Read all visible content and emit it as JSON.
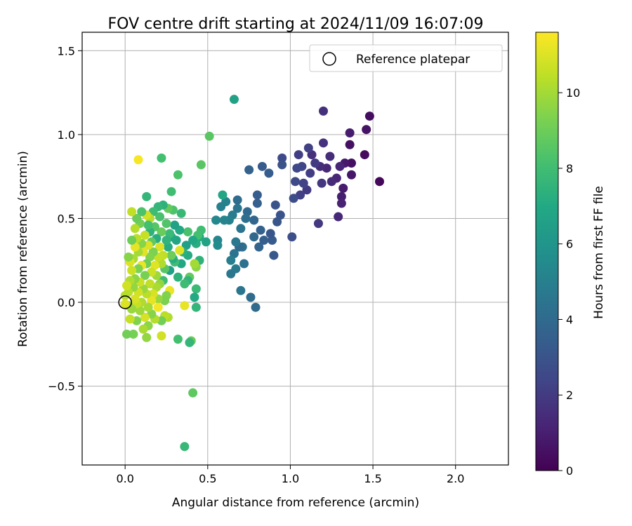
{
  "chart_data": {
    "type": "scatter",
    "title": "FOV centre drift starting at 2024/11/09 16:07:09",
    "xlabel": "Angular distance from reference (arcmin)",
    "ylabel": "Rotation from reference (arcmin)",
    "xlim": [
      -0.26,
      2.32
    ],
    "ylim": [
      -0.97,
      1.61
    ],
    "xticks": [
      0.0,
      0.5,
      1.0,
      1.5,
      2.0
    ],
    "xtick_labels": [
      "0.0",
      "0.5",
      "1.0",
      "1.5",
      "2.0"
    ],
    "yticks": [
      -0.5,
      0.0,
      0.5,
      1.0,
      1.5
    ],
    "ytick_labels": [
      "−0.5",
      "0.0",
      "0.5",
      "1.0",
      "1.5"
    ],
    "grid": true,
    "legend": {
      "position": "top-right",
      "entries": [
        "Reference platepar"
      ]
    },
    "reference_point": {
      "x": 0.0,
      "y": 0.0,
      "label": "Reference platepar"
    },
    "colorbar": {
      "label": "Hours from first FF file",
      "colormap": "viridis",
      "range": [
        0,
        11.6
      ],
      "ticks": [
        0,
        2,
        4,
        6,
        8,
        10
      ],
      "tick_labels": [
        "0",
        "2",
        "4",
        "6",
        "8",
        "10"
      ]
    },
    "points": [
      {
        "x": 1.54,
        "y": 0.72,
        "c": 0.2
      },
      {
        "x": 1.48,
        "y": 1.11,
        "c": 0.4
      },
      {
        "x": 1.46,
        "y": 1.03,
        "c": 0.6
      },
      {
        "x": 1.45,
        "y": 0.88,
        "c": 0.3
      },
      {
        "x": 1.37,
        "y": 0.83,
        "c": 0.5
      },
      {
        "x": 1.37,
        "y": 0.76,
        "c": 0.7
      },
      {
        "x": 1.36,
        "y": 1.01,
        "c": 0.9
      },
      {
        "x": 1.36,
        "y": 0.94,
        "c": 0.5
      },
      {
        "x": 1.33,
        "y": 0.83,
        "c": 0.8
      },
      {
        "x": 1.32,
        "y": 0.68,
        "c": 0.9
      },
      {
        "x": 1.31,
        "y": 0.63,
        "c": 1.0
      },
      {
        "x": 1.31,
        "y": 0.59,
        "c": 1.1
      },
      {
        "x": 1.3,
        "y": 0.81,
        "c": 1.2
      },
      {
        "x": 1.29,
        "y": 0.51,
        "c": 1.3
      },
      {
        "x": 1.28,
        "y": 0.74,
        "c": 1.2
      },
      {
        "x": 1.25,
        "y": 0.72,
        "c": 1.4
      },
      {
        "x": 1.24,
        "y": 0.87,
        "c": 1.5
      },
      {
        "x": 1.22,
        "y": 0.8,
        "c": 1.3
      },
      {
        "x": 1.2,
        "y": 1.14,
        "c": 1.6
      },
      {
        "x": 1.2,
        "y": 0.95,
        "c": 1.7
      },
      {
        "x": 1.19,
        "y": 0.71,
        "c": 1.8
      },
      {
        "x": 1.18,
        "y": 0.81,
        "c": 1.5
      },
      {
        "x": 1.17,
        "y": 0.47,
        "c": 1.9
      },
      {
        "x": 1.15,
        "y": 0.83,
        "c": 2.0
      },
      {
        "x": 1.13,
        "y": 0.88,
        "c": 1.6
      },
      {
        "x": 1.12,
        "y": 0.77,
        "c": 2.1
      },
      {
        "x": 1.11,
        "y": 0.92,
        "c": 2.2
      },
      {
        "x": 1.1,
        "y": 0.67,
        "c": 2.0
      },
      {
        "x": 1.08,
        "y": 0.71,
        "c": 2.3
      },
      {
        "x": 1.07,
        "y": 0.81,
        "c": 2.4
      },
      {
        "x": 1.06,
        "y": 0.64,
        "c": 2.2
      },
      {
        "x": 1.05,
        "y": 0.88,
        "c": 2.1
      },
      {
        "x": 1.04,
        "y": 0.8,
        "c": 2.5
      },
      {
        "x": 1.03,
        "y": 0.72,
        "c": 2.6
      },
      {
        "x": 1.02,
        "y": 0.62,
        "c": 2.7
      },
      {
        "x": 1.01,
        "y": 0.39,
        "c": 2.8
      },
      {
        "x": 0.95,
        "y": 0.86,
        "c": 2.6
      },
      {
        "x": 0.95,
        "y": 0.82,
        "c": 2.9
      },
      {
        "x": 0.94,
        "y": 0.52,
        "c": 3.0
      },
      {
        "x": 0.92,
        "y": 0.48,
        "c": 3.1
      },
      {
        "x": 0.91,
        "y": 0.58,
        "c": 3.0
      },
      {
        "x": 0.9,
        "y": 0.28,
        "c": 3.2
      },
      {
        "x": 0.89,
        "y": 0.37,
        "c": 3.3
      },
      {
        "x": 0.88,
        "y": 0.41,
        "c": 3.1
      },
      {
        "x": 0.87,
        "y": 0.77,
        "c": 3.4
      },
      {
        "x": 0.84,
        "y": 0.37,
        "c": 3.5
      },
      {
        "x": 0.83,
        "y": 0.81,
        "c": 3.3
      },
      {
        "x": 0.82,
        "y": 0.43,
        "c": 3.6
      },
      {
        "x": 0.81,
        "y": 0.33,
        "c": 3.7
      },
      {
        "x": 0.8,
        "y": 0.59,
        "c": 3.5
      },
      {
        "x": 0.8,
        "y": 0.64,
        "c": 3.4
      },
      {
        "x": 0.78,
        "y": 0.49,
        "c": 3.8
      },
      {
        "x": 0.78,
        "y": 0.39,
        "c": 3.9
      },
      {
        "x": 0.79,
        "y": -0.03,
        "c": 4.0
      },
      {
        "x": 0.76,
        "y": 0.03,
        "c": 4.1
      },
      {
        "x": 0.75,
        "y": 0.79,
        "c": 3.6
      },
      {
        "x": 0.74,
        "y": 0.54,
        "c": 3.9
      },
      {
        "x": 0.73,
        "y": 0.5,
        "c": 4.2
      },
      {
        "x": 0.72,
        "y": 0.23,
        "c": 4.3
      },
      {
        "x": 0.71,
        "y": 0.33,
        "c": 4.2
      },
      {
        "x": 0.7,
        "y": 0.44,
        "c": 4.4
      },
      {
        "x": 0.7,
        "y": 0.07,
        "c": 4.5
      },
      {
        "x": 0.69,
        "y": 0.33,
        "c": 4.0
      },
      {
        "x": 0.68,
        "y": 0.56,
        "c": 4.5
      },
      {
        "x": 0.68,
        "y": 0.61,
        "c": 4.1
      },
      {
        "x": 0.67,
        "y": 0.36,
        "c": 4.6
      },
      {
        "x": 0.67,
        "y": 0.2,
        "c": 4.7
      },
      {
        "x": 0.66,
        "y": 0.29,
        "c": 4.4
      },
      {
        "x": 0.66,
        "y": 1.21,
        "c": 6.6
      },
      {
        "x": 0.65,
        "y": 0.52,
        "c": 4.8
      },
      {
        "x": 0.64,
        "y": 0.25,
        "c": 4.9
      },
      {
        "x": 0.64,
        "y": 0.17,
        "c": 4.6
      },
      {
        "x": 0.63,
        "y": 0.49,
        "c": 5.0
      },
      {
        "x": 0.61,
        "y": 0.6,
        "c": 5.1
      },
      {
        "x": 0.6,
        "y": 0.49,
        "c": 5.2
      },
      {
        "x": 0.59,
        "y": 0.64,
        "c": 6.8
      },
      {
        "x": 0.58,
        "y": 0.57,
        "c": 5.0
      },
      {
        "x": 0.56,
        "y": 0.37,
        "c": 5.3
      },
      {
        "x": 0.56,
        "y": 0.34,
        "c": 5.5
      },
      {
        "x": 0.55,
        "y": 0.49,
        "c": 5.4
      },
      {
        "x": 0.51,
        "y": 0.99,
        "c": 8.6
      },
      {
        "x": 0.49,
        "y": 0.36,
        "c": 6.7
      },
      {
        "x": 0.46,
        "y": 0.43,
        "c": 8.0
      },
      {
        "x": 0.46,
        "y": 0.82,
        "c": 8.6
      },
      {
        "x": 0.45,
        "y": 0.39,
        "c": 7.0
      },
      {
        "x": 0.45,
        "y": 0.25,
        "c": 7.4
      },
      {
        "x": 0.44,
        "y": 0.4,
        "c": 8.1
      },
      {
        "x": 0.43,
        "y": 0.35,
        "c": 7.2
      },
      {
        "x": 0.43,
        "y": 0.21,
        "c": 9.6
      },
      {
        "x": 0.43,
        "y": 0.08,
        "c": 7.8
      },
      {
        "x": 0.43,
        "y": -0.03,
        "c": 7.6
      },
      {
        "x": 0.42,
        "y": 0.03,
        "c": 7.0
      },
      {
        "x": 0.42,
        "y": 0.23,
        "c": 10.0
      },
      {
        "x": 0.41,
        "y": 0.37,
        "c": 6.9
      },
      {
        "x": 0.41,
        "y": -0.54,
        "c": 8.7
      },
      {
        "x": 0.4,
        "y": -0.23,
        "c": 8.9
      },
      {
        "x": 0.39,
        "y": 0.15,
        "c": 8.8
      },
      {
        "x": 0.39,
        "y": -0.24,
        "c": 7.6
      },
      {
        "x": 0.38,
        "y": 0.42,
        "c": 8.2
      },
      {
        "x": 0.38,
        "y": 0.28,
        "c": 7.1
      },
      {
        "x": 0.38,
        "y": 0.13,
        "c": 7.5
      },
      {
        "x": 0.37,
        "y": 0.34,
        "c": 6.5
      },
      {
        "x": 0.36,
        "y": 0.11,
        "c": 7.9
      },
      {
        "x": 0.36,
        "y": -0.02,
        "c": 11.2
      },
      {
        "x": 0.36,
        "y": -0.86,
        "c": 7.7
      },
      {
        "x": 0.35,
        "y": 0.3,
        "c": 7.3
      },
      {
        "x": 0.34,
        "y": 0.23,
        "c": 6.9
      },
      {
        "x": 0.34,
        "y": 0.53,
        "c": 7.7
      },
      {
        "x": 0.33,
        "y": 0.31,
        "c": 11.1
      },
      {
        "x": 0.33,
        "y": 0.43,
        "c": 7.0
      },
      {
        "x": 0.32,
        "y": 0.76,
        "c": 8.3
      },
      {
        "x": 0.32,
        "y": 0.15,
        "c": 7.4
      },
      {
        "x": 0.32,
        "y": -0.22,
        "c": 8.1
      },
      {
        "x": 0.31,
        "y": 0.37,
        "c": 6.8
      },
      {
        "x": 0.3,
        "y": 0.24,
        "c": 8.0
      },
      {
        "x": 0.3,
        "y": 0.46,
        "c": 6.6
      },
      {
        "x": 0.29,
        "y": 0.55,
        "c": 8.3
      },
      {
        "x": 0.29,
        "y": 0.26,
        "c": 7.2
      },
      {
        "x": 0.28,
        "y": 0.66,
        "c": 8.0
      },
      {
        "x": 0.28,
        "y": 0.39,
        "c": 6.9
      },
      {
        "x": 0.28,
        "y": 0.28,
        "c": 9.0
      },
      {
        "x": 0.27,
        "y": 0.41,
        "c": 7.8
      },
      {
        "x": 0.27,
        "y": 0.19,
        "c": 6.5
      },
      {
        "x": 0.27,
        "y": 0.07,
        "c": 11.3
      },
      {
        "x": 0.26,
        "y": 0.56,
        "c": 8.8
      },
      {
        "x": 0.26,
        "y": 0.33,
        "c": 7.1
      },
      {
        "x": 0.26,
        "y": -0.09,
        "c": 10.2
      },
      {
        "x": 0.25,
        "y": 0.47,
        "c": 8.4
      },
      {
        "x": 0.25,
        "y": 0.37,
        "c": 7.5
      },
      {
        "x": 0.25,
        "y": 0.04,
        "c": 9.4
      },
      {
        "x": 0.24,
        "y": 0.2,
        "c": 8.6
      },
      {
        "x": 0.24,
        "y": -0.08,
        "c": 10.4
      },
      {
        "x": 0.24,
        "y": 0.01,
        "c": 9.3
      },
      {
        "x": 0.23,
        "y": 0.58,
        "c": 7.4
      },
      {
        "x": 0.23,
        "y": 0.28,
        "c": 10.5
      },
      {
        "x": 0.23,
        "y": 0.13,
        "c": 7.9
      },
      {
        "x": 0.22,
        "y": 0.86,
        "c": 8.1
      },
      {
        "x": 0.22,
        "y": 0.42,
        "c": 8.9
      },
      {
        "x": 0.22,
        "y": 0.23,
        "c": 10.2
      },
      {
        "x": 0.22,
        "y": -0.11,
        "c": 9.1
      },
      {
        "x": 0.22,
        "y": -0.2,
        "c": 10.8
      },
      {
        "x": 0.21,
        "y": 0.33,
        "c": 11.0
      },
      {
        "x": 0.21,
        "y": 0.11,
        "c": 9.7
      },
      {
        "x": 0.21,
        "y": 0.51,
        "c": 8.2
      },
      {
        "x": 0.2,
        "y": 0.57,
        "c": 7.6
      },
      {
        "x": 0.2,
        "y": 0.27,
        "c": 10.6
      },
      {
        "x": 0.2,
        "y": 0.02,
        "c": 9.8
      },
      {
        "x": 0.2,
        "y": -0.03,
        "c": 11.4
      },
      {
        "x": 0.19,
        "y": 0.38,
        "c": 7.2
      },
      {
        "x": 0.19,
        "y": 0.16,
        "c": 9.9
      },
      {
        "x": 0.19,
        "y": 0.09,
        "c": 10.1
      },
      {
        "x": 0.18,
        "y": 0.45,
        "c": 8.5
      },
      {
        "x": 0.18,
        "y": 0.22,
        "c": 11.1
      },
      {
        "x": 0.18,
        "y": -0.1,
        "c": 10.3
      },
      {
        "x": 0.17,
        "y": 0.3,
        "c": 9.3
      },
      {
        "x": 0.17,
        "y": 0.54,
        "c": 7.9
      },
      {
        "x": 0.17,
        "y": 0.05,
        "c": 10.9
      },
      {
        "x": 0.16,
        "y": 0.01,
        "c": 11.2
      },
      {
        "x": 0.16,
        "y": 0.36,
        "c": 8.7
      },
      {
        "x": 0.16,
        "y": 0.18,
        "c": 10.7
      },
      {
        "x": 0.16,
        "y": -0.07,
        "c": 9.5
      },
      {
        "x": 0.15,
        "y": 0.5,
        "c": 10.3
      },
      {
        "x": 0.15,
        "y": 0.42,
        "c": 7.4
      },
      {
        "x": 0.15,
        "y": 0.27,
        "c": 9.4
      },
      {
        "x": 0.15,
        "y": 0.11,
        "c": 10.5
      },
      {
        "x": 0.14,
        "y": 0.34,
        "c": 11.0
      },
      {
        "x": 0.14,
        "y": -0.03,
        "c": 10.0
      },
      {
        "x": 0.14,
        "y": -0.14,
        "c": 9.6
      },
      {
        "x": 0.14,
        "y": 0.46,
        "c": 8.1
      },
      {
        "x": 0.13,
        "y": 0.63,
        "c": 7.6
      },
      {
        "x": 0.13,
        "y": 0.52,
        "c": 10.8
      },
      {
        "x": 0.13,
        "y": 0.23,
        "c": 9.0
      },
      {
        "x": 0.13,
        "y": 0.05,
        "c": 10.4
      },
      {
        "x": 0.13,
        "y": -0.21,
        "c": 9.7
      },
      {
        "x": 0.12,
        "y": 0.4,
        "c": 10.6
      },
      {
        "x": 0.12,
        "y": 0.16,
        "c": 9.2
      },
      {
        "x": 0.12,
        "y": -0.09,
        "c": 10.9
      },
      {
        "x": 0.11,
        "y": 0.3,
        "c": 11.1
      },
      {
        "x": 0.11,
        "y": 0.08,
        "c": 9.8
      },
      {
        "x": 0.11,
        "y": -0.16,
        "c": 10.1
      },
      {
        "x": 0.1,
        "y": 0.54,
        "c": 8.3
      },
      {
        "x": 0.1,
        "y": 0.35,
        "c": 9.5
      },
      {
        "x": 0.1,
        "y": 0.22,
        "c": 11.3
      },
      {
        "x": 0.1,
        "y": 0.0,
        "c": 10.2
      },
      {
        "x": 0.09,
        "y": 0.47,
        "c": 9.1
      },
      {
        "x": 0.09,
        "y": 0.12,
        "c": 10.7
      },
      {
        "x": 0.09,
        "y": -0.05,
        "c": 9.9
      },
      {
        "x": 0.08,
        "y": 0.85,
        "c": 11.5
      },
      {
        "x": 0.08,
        "y": 0.3,
        "c": 10.0
      },
      {
        "x": 0.08,
        "y": 0.2,
        "c": 9.3
      },
      {
        "x": 0.08,
        "y": 0.06,
        "c": 10.8
      },
      {
        "x": 0.07,
        "y": 0.5,
        "c": 8.9
      },
      {
        "x": 0.07,
        "y": 0.38,
        "c": 10.4
      },
      {
        "x": 0.07,
        "y": -0.01,
        "c": 10.6
      },
      {
        "x": 0.07,
        "y": -0.11,
        "c": 9.4
      },
      {
        "x": 0.06,
        "y": 0.44,
        "c": 10.3
      },
      {
        "x": 0.06,
        "y": 0.33,
        "c": 11.2
      },
      {
        "x": 0.06,
        "y": 0.14,
        "c": 9.6
      },
      {
        "x": 0.06,
        "y": 0.02,
        "c": 10.9
      },
      {
        "x": 0.05,
        "y": 0.26,
        "c": 10.1
      },
      {
        "x": 0.05,
        "y": 0.09,
        "c": 9.7
      },
      {
        "x": 0.05,
        "y": -0.19,
        "c": 9.2
      },
      {
        "x": 0.04,
        "y": 0.54,
        "c": 10.5
      },
      {
        "x": 0.04,
        "y": 0.37,
        "c": 9.0
      },
      {
        "x": 0.04,
        "y": 0.19,
        "c": 10.7
      },
      {
        "x": 0.04,
        "y": -0.04,
        "c": 9.8
      },
      {
        "x": 0.03,
        "y": 0.24,
        "c": 11.0
      },
      {
        "x": 0.03,
        "y": 0.13,
        "c": 10.2
      },
      {
        "x": 0.03,
        "y": -0.1,
        "c": 10.6
      },
      {
        "x": 0.02,
        "y": 0.27,
        "c": 9.5
      },
      {
        "x": 0.02,
        "y": 0.06,
        "c": 10.4
      },
      {
        "x": 0.02,
        "y": -0.02,
        "c": 9.9
      },
      {
        "x": 0.01,
        "y": -0.19,
        "c": 9.1
      },
      {
        "x": 0.01,
        "y": 0.1,
        "c": 10.8
      },
      {
        "x": 0.0,
        "y": 0.04,
        "c": 10.3
      },
      {
        "x": 0.0,
        "y": -0.01,
        "c": 11.0
      }
    ]
  }
}
